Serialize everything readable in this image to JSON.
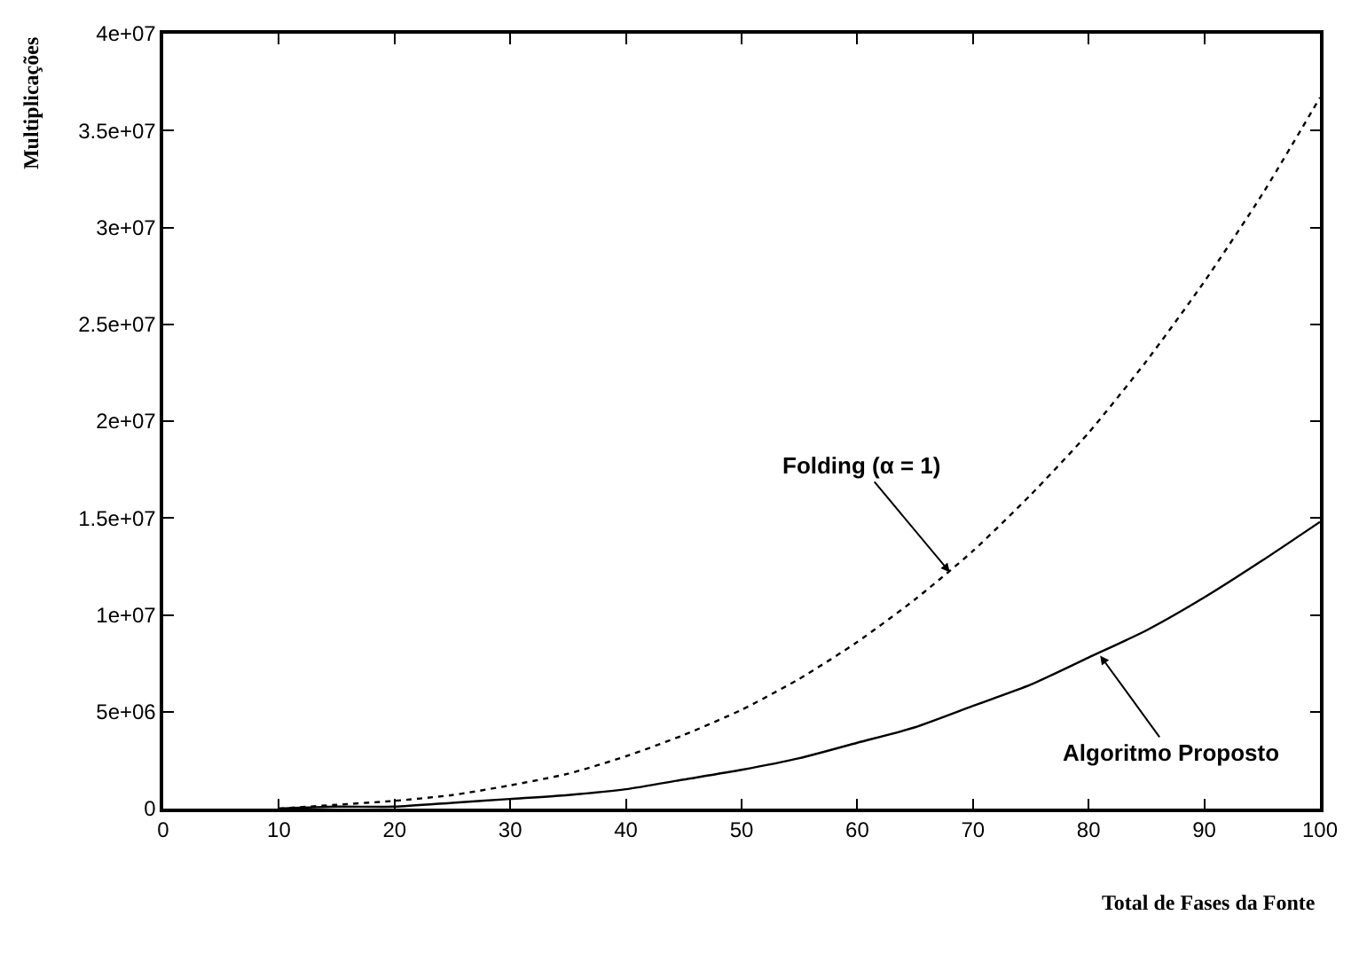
{
  "chart_data": {
    "type": "line",
    "xlabel": "Total de Fases da Fonte",
    "ylabel": "Multiplicações",
    "x": [
      10,
      15,
      20,
      25,
      30,
      35,
      40,
      45,
      50,
      55,
      60,
      65,
      70,
      75,
      80,
      85,
      90,
      95,
      100
    ],
    "series": [
      {
        "color": "#000000",
        "line_style": "dotted",
        "values": [
          0,
          200000,
          400000,
          700000,
          1200000,
          1800000,
          2700000,
          3800000,
          5100000,
          6700000,
          8600000,
          10800000,
          13300000,
          16200000,
          19400000,
          23100000,
          27200000,
          31700000,
          36700000
        ]
      },
      {
        "color": "#000000",
        "line_style": "solid",
        "values": [
          0,
          100000,
          100000,
          300000,
          500000,
          700000,
          1000000,
          1500000,
          2000000,
          2600000,
          3400000,
          4200000,
          5300000,
          6400000,
          7800000,
          9200000,
          10900000,
          12800000,
          14800000
        ]
      }
    ],
    "xlim": [
      0,
      100
    ],
    "xticks": [
      0,
      10,
      20,
      30,
      40,
      50,
      60,
      70,
      80,
      90,
      100
    ],
    "ylim": [
      0,
      40000000
    ],
    "yticks": [
      0,
      {
        "value": 5000000,
        "label": "5e+06"
      },
      {
        "value": 10000000,
        "label": "1e+07"
      },
      {
        "value": 15000000,
        "label": "1.5e+07"
      },
      {
        "value": 20000000,
        "label": "2e+07"
      },
      {
        "value": 25000000,
        "label": "2.5e+07"
      },
      {
        "value": 30000000,
        "label": "3e+07"
      },
      {
        "value": 35000000,
        "label": "3.5e+07"
      },
      {
        "value": 40000000,
        "label": "4e+07"
      }
    ],
    "annotations": [
      {
        "text": "Folding (α = 1)",
        "x": 68,
        "y": 12200000
      },
      {
        "text": "Algoritmo Proposto",
        "x": 81,
        "y": 7900000
      }
    ],
    "marker": "none"
  }
}
